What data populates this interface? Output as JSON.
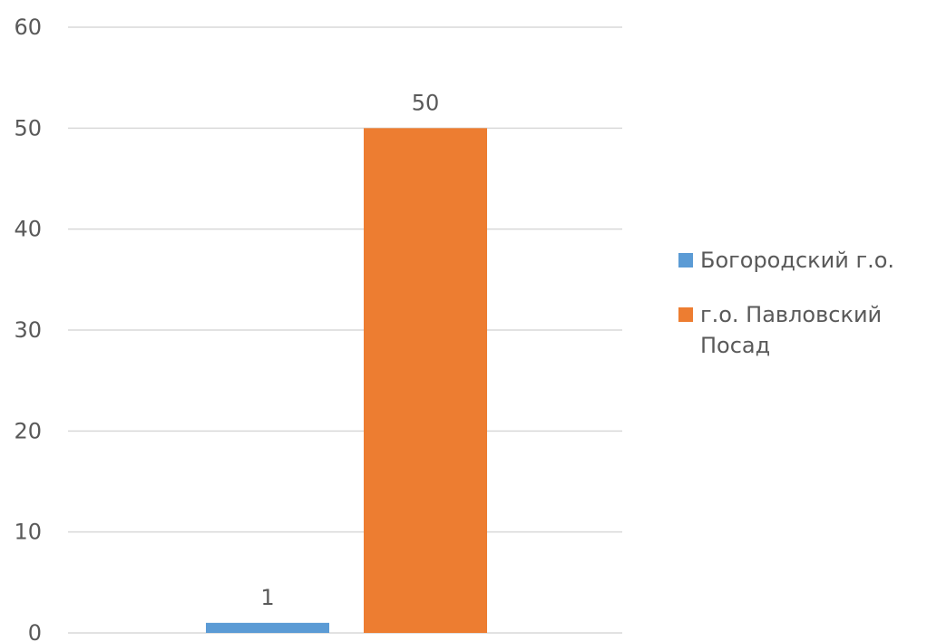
{
  "chart_data": {
    "type": "bar",
    "title": "",
    "xlabel": "",
    "ylabel": "",
    "ylim": [
      0,
      60
    ],
    "yticks": [
      0,
      10,
      20,
      30,
      40,
      50,
      60
    ],
    "grid": true,
    "legend_position": "right",
    "series": [
      {
        "name": "Богородский г.о.",
        "values": [
          1
        ],
        "color": "#5B9BD5",
        "data_label": "1"
      },
      {
        "name": "г.о. Павловский Посад",
        "values": [
          50
        ],
        "color": "#ED7D31",
        "data_label": "50"
      }
    ]
  },
  "legend": {
    "items": [
      {
        "label": "Богородский г.о.",
        "color": "#5B9BD5"
      },
      {
        "label": "г.о. Павловский Посад",
        "color": "#ED7D31"
      }
    ]
  },
  "colors": {
    "gridline": "#D9D9D9",
    "text": "#595959"
  }
}
